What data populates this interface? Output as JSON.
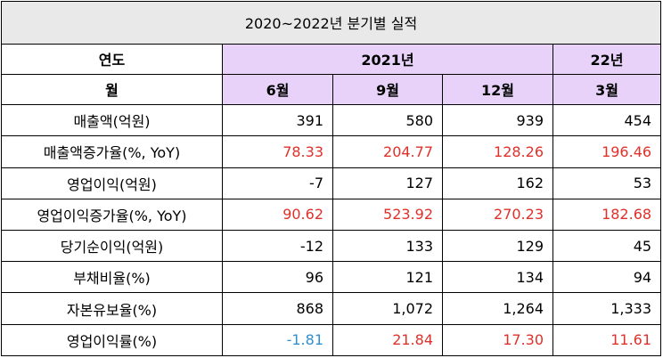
{
  "title": "2020~2022년  분기별  실적",
  "headers": {
    "year_label": "연도",
    "month_label": "월",
    "year_2021": "2021년",
    "year_22": "22년",
    "months": [
      "6월",
      "9월",
      "12월",
      "3월"
    ]
  },
  "rows": [
    {
      "label": "매출액(억원)",
      "values": [
        "391",
        "580",
        "939",
        "454"
      ],
      "colors": [
        "#000000",
        "#000000",
        "#000000",
        "#000000"
      ]
    },
    {
      "label": "매출액증가율(%, YoY)",
      "values": [
        "78.33",
        "204.77",
        "128.26",
        "196.46"
      ],
      "colors": [
        "#e0302a",
        "#e0302a",
        "#e0302a",
        "#e0302a"
      ]
    },
    {
      "label": "영업이익(억원)",
      "values": [
        "-7",
        "127",
        "162",
        "53"
      ],
      "colors": [
        "#000000",
        "#000000",
        "#000000",
        "#000000"
      ]
    },
    {
      "label": "영업이익증가율(%, YoY)",
      "values": [
        "90.62",
        "523.92",
        "270.23",
        "182.68"
      ],
      "colors": [
        "#e0302a",
        "#e0302a",
        "#e0302a",
        "#e0302a"
      ]
    },
    {
      "label": "당기순이익(억원)",
      "values": [
        "-12",
        "133",
        "129",
        "45"
      ],
      "colors": [
        "#000000",
        "#000000",
        "#000000",
        "#000000"
      ]
    },
    {
      "label": "부채비율(%)",
      "values": [
        "96",
        "121",
        "134",
        "94"
      ],
      "colors": [
        "#000000",
        "#000000",
        "#000000",
        "#000000"
      ]
    },
    {
      "label": "자본유보율(%)",
      "values": [
        "868",
        "1,072",
        "1,264",
        "1,333"
      ],
      "colors": [
        "#000000",
        "#000000",
        "#000000",
        "#000000"
      ]
    },
    {
      "label": "영업이익률(%)",
      "values": [
        "-1.81",
        "21.84",
        "17.30",
        "11.61"
      ],
      "colors": [
        "#2f8fd1",
        "#e0302a",
        "#e0302a",
        "#e0302a"
      ]
    }
  ]
}
